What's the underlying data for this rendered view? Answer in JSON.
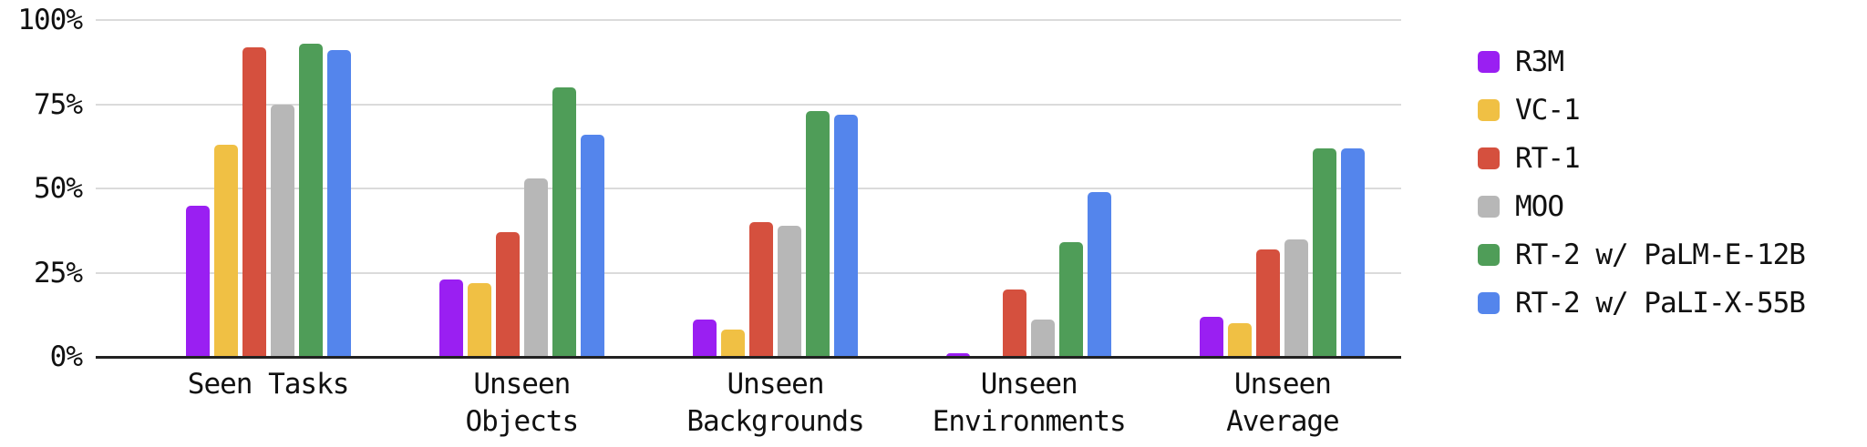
{
  "chart_data": {
    "type": "bar",
    "title": "",
    "xlabel": "",
    "ylabel": "",
    "unit": "%",
    "ylim": [
      0,
      100
    ],
    "grid": true,
    "legend_position": "right",
    "y_ticks": [
      {
        "label": "100%",
        "value": 100
      },
      {
        "label": "75%",
        "value": 75
      },
      {
        "label": "50%",
        "value": 50
      },
      {
        "label": "25%",
        "value": 25
      },
      {
        "label": "0%",
        "value": 0
      }
    ],
    "categories": [
      {
        "lines": [
          "Seen Tasks"
        ]
      },
      {
        "lines": [
          "Unseen",
          "Objects"
        ]
      },
      {
        "lines": [
          "Unseen",
          "Backgrounds"
        ]
      },
      {
        "lines": [
          "Unseen",
          "Environments"
        ]
      },
      {
        "lines": [
          "Unseen",
          "Average"
        ]
      }
    ],
    "series": [
      {
        "name": "R3M",
        "color": "#9A1FF2",
        "values": [
          45,
          23,
          11,
          1,
          12
        ]
      },
      {
        "name": "VC-1",
        "color": "#F0C044",
        "values": [
          63,
          22,
          8,
          0,
          10
        ]
      },
      {
        "name": "RT-1",
        "color": "#D5503E",
        "values": [
          92,
          37,
          40,
          20,
          32
        ]
      },
      {
        "name": "MOO",
        "color": "#B7B7B7",
        "values": [
          75,
          53,
          39,
          11,
          35
        ]
      },
      {
        "name": "RT-2 w/ PaLM-E-12B",
        "color": "#4F9D58",
        "values": [
          93,
          80,
          73,
          34,
          62
        ]
      },
      {
        "name": "RT-2 w/ PaLI-X-55B",
        "color": "#5485EC",
        "values": [
          91,
          66,
          72,
          49,
          62
        ]
      }
    ]
  },
  "colors": {
    "background": "#FFFFFF",
    "gridline": "#DBDBDB",
    "axis": "#212121",
    "text": "#111111"
  }
}
